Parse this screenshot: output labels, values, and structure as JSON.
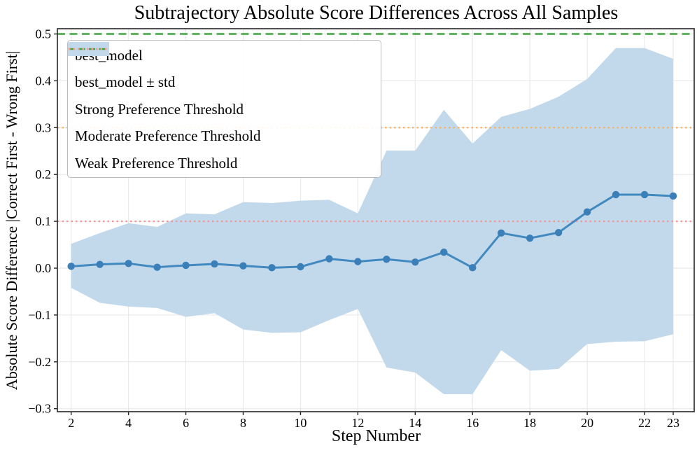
{
  "figure": {
    "title": "Subtrajectory Absolute Score Differences Across All Samples",
    "xlabel": "Step Number",
    "ylabel": "Absolute Score Difference |Correct First - Wrong First|"
  },
  "legend": {
    "items": [
      {
        "label": "best_model",
        "glyph": "line-marker",
        "color": "#4289c0"
      },
      {
        "label": "best_model ± std",
        "glyph": "band",
        "color": "#c2d9eb"
      },
      {
        "label": "Strong Preference Threshold",
        "glyph": "dashed",
        "color": "#3da63d"
      },
      {
        "label": "Moderate Preference Threshold",
        "glyph": "dotted",
        "color": "#f7b259"
      },
      {
        "label": "Weak Preference Threshold",
        "glyph": "dotted",
        "color": "#f19999"
      }
    ]
  },
  "chart_data": {
    "type": "line",
    "title": "Subtrajectory Absolute Score Differences Across All Samples",
    "xlabel": "Step Number",
    "ylabel": "Absolute Score Difference |Correct First - Wrong First|",
    "x": [
      2,
      3,
      4,
      5,
      6,
      7,
      8,
      9,
      10,
      11,
      12,
      13,
      14,
      15,
      16,
      17,
      18,
      19,
      20,
      21,
      22,
      23
    ],
    "series": [
      {
        "name": "best_model",
        "values": [
          0.004,
          0.008,
          0.01,
          0.002,
          0.006,
          0.009,
          0.005,
          0.001,
          0.003,
          0.02,
          0.014,
          0.019,
          0.013,
          0.034,
          0.001,
          0.075,
          0.064,
          0.076,
          0.12,
          0.157,
          0.157,
          0.154
        ],
        "color": "#4289c0",
        "marker_color": "#3b7fb8"
      }
    ],
    "band": {
      "name": "best_model ± std",
      "upper": [
        0.052,
        0.075,
        0.096,
        0.088,
        0.117,
        0.115,
        0.141,
        0.139,
        0.144,
        0.146,
        0.117,
        0.251,
        0.251,
        0.338,
        0.266,
        0.323,
        0.34,
        0.366,
        0.404,
        0.47,
        0.47,
        0.447
      ],
      "lower": [
        -0.042,
        -0.074,
        -0.082,
        -0.085,
        -0.104,
        -0.096,
        -0.131,
        -0.138,
        -0.137,
        -0.111,
        -0.087,
        -0.212,
        -0.223,
        -0.269,
        -0.269,
        -0.175,
        -0.219,
        -0.215,
        -0.162,
        -0.157,
        -0.156,
        -0.141
      ],
      "color": "#c2d9eb"
    },
    "thresholds": [
      {
        "name": "Strong Preference Threshold",
        "value": 0.5,
        "style": "dashed",
        "color": "#3da63d"
      },
      {
        "name": "Moderate Preference Threshold",
        "value": 0.3,
        "style": "dotted",
        "color": "#f7b259"
      },
      {
        "name": "Weak Preference Threshold",
        "value": 0.1,
        "style": "dotted",
        "color": "#f19999"
      }
    ],
    "xticks": [
      2,
      4,
      6,
      8,
      10,
      12,
      14,
      16,
      18,
      20,
      22,
      23
    ],
    "yticks": [
      -0.3,
      -0.2,
      -0.1,
      0.0,
      0.1,
      0.2,
      0.3,
      0.4,
      0.5
    ],
    "xlim": [
      1.55,
      23.73
    ],
    "ylim": [
      -0.31,
      0.505
    ],
    "grid": true,
    "legend_position": "upper left",
    "frame_color": "#262626",
    "grid_color": "#e6e6e6"
  }
}
